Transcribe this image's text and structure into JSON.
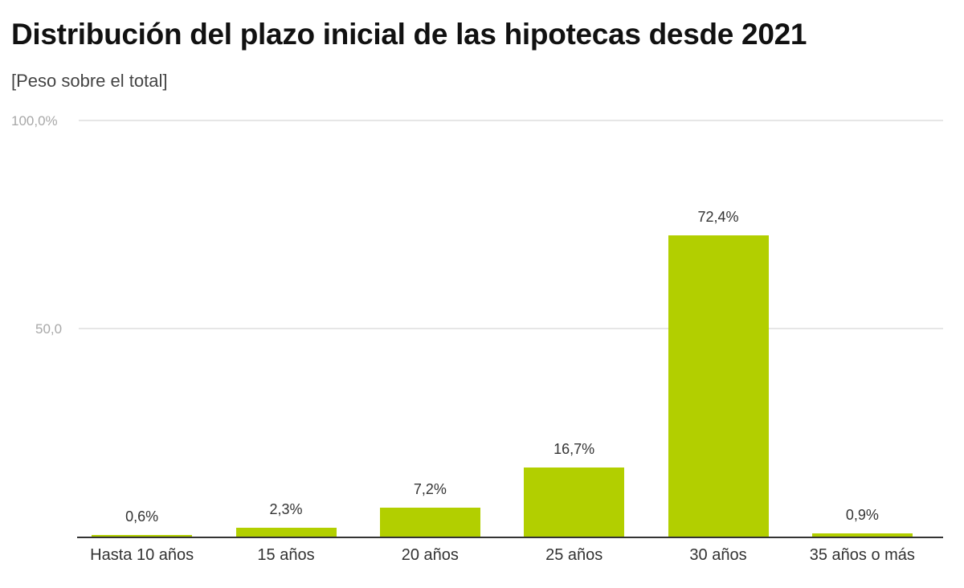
{
  "chart_data": {
    "type": "bar",
    "title": "Distribución del plazo inicial de las hipotecas desde 2021",
    "subtitle": "[Peso sobre el total]",
    "xlabel": "",
    "ylabel": "",
    "ylim": [
      0,
      100
    ],
    "yticks": [
      "100,0%",
      "50,0"
    ],
    "grid": true,
    "legend": null,
    "bar_color": "#b2cf00",
    "categories": [
      "Hasta 10 años",
      "15 años",
      "20 años",
      "25 años",
      "30 años",
      "35 años o más"
    ],
    "values": [
      0.6,
      2.3,
      7.2,
      16.7,
      72.4,
      0.9
    ],
    "value_labels": [
      "0,6%",
      "2,3%",
      "7,2%",
      "16,7%",
      "72,4%",
      "0,9%"
    ]
  }
}
